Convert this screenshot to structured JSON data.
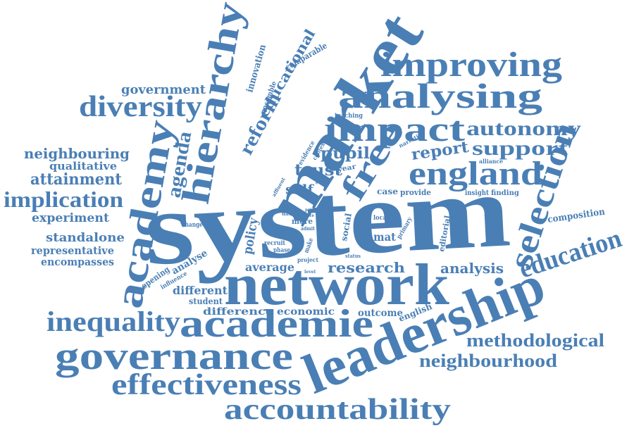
{
  "color": "#4a7fb5",
  "words": [
    "system",
    "network",
    "market",
    "leadership",
    "academie",
    "governance",
    "hierarchy",
    "academy",
    "analysing",
    "improving",
    "impact",
    "free",
    "england",
    "selection",
    "accountability",
    "effectiveness",
    "diversity",
    "inequality",
    "education",
    "methodological",
    "neighbourhood",
    "autonomy",
    "support",
    "implication",
    "reform",
    "agenda",
    "educational",
    "government",
    "neighbouring",
    "attainment",
    "experiment",
    "standalone",
    "representative",
    "encompasses",
    "qualitative",
    "research",
    "analysis",
    "report",
    "pupil",
    "trust",
    "self",
    "policy",
    "average",
    "different",
    "difference",
    "economic",
    "outcome",
    "english",
    "student",
    "composition",
    "innovation",
    "comparable",
    "ensemble",
    "analyse",
    "opening",
    "influence",
    "case",
    "provide",
    "insight",
    "finding",
    "mat",
    "social",
    "editorial",
    "teaching",
    "narrative",
    "alliance",
    "evidence",
    "year",
    "context",
    "more",
    "admit",
    "make",
    "local",
    "primary",
    "project",
    "status",
    "recruit",
    "phase",
    "change",
    "main",
    "data",
    "affluent",
    "study",
    "prior",
    "state",
    "level"
  ]
}
